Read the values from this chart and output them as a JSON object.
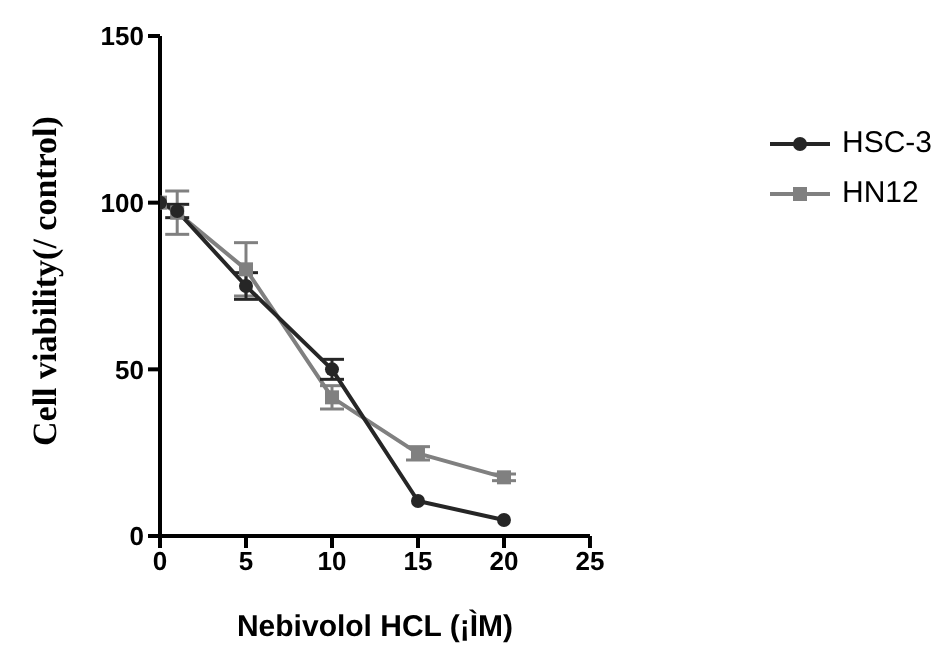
{
  "chart_data": {
    "type": "line",
    "xlabel": "Nebivolol HCL (¡ÌM)",
    "ylabel": "Cell viability(/ control)",
    "x": [
      0,
      1,
      5,
      10,
      15,
      20
    ],
    "xlim": [
      0,
      25
    ],
    "xticks": [
      0,
      5,
      10,
      15,
      20,
      25
    ],
    "ylim": [
      0,
      150
    ],
    "yticks": [
      0,
      50,
      100,
      150
    ],
    "grid": false,
    "legend": "right",
    "line_style": "solid",
    "series": [
      {
        "name": "HSC-3",
        "color": "#262626",
        "marker": "circle",
        "values": [
          100,
          97.5,
          75,
          50,
          10.5,
          4.8
        ],
        "errors": [
          null,
          2,
          4,
          3,
          null,
          null
        ]
      },
      {
        "name": "HN12",
        "color": "#808080",
        "marker": "square",
        "values": [
          100,
          97,
          80,
          41.6,
          24.8,
          17.6
        ],
        "errors": [
          null,
          6.5,
          8,
          3.5,
          2,
          1
        ]
      }
    ]
  }
}
